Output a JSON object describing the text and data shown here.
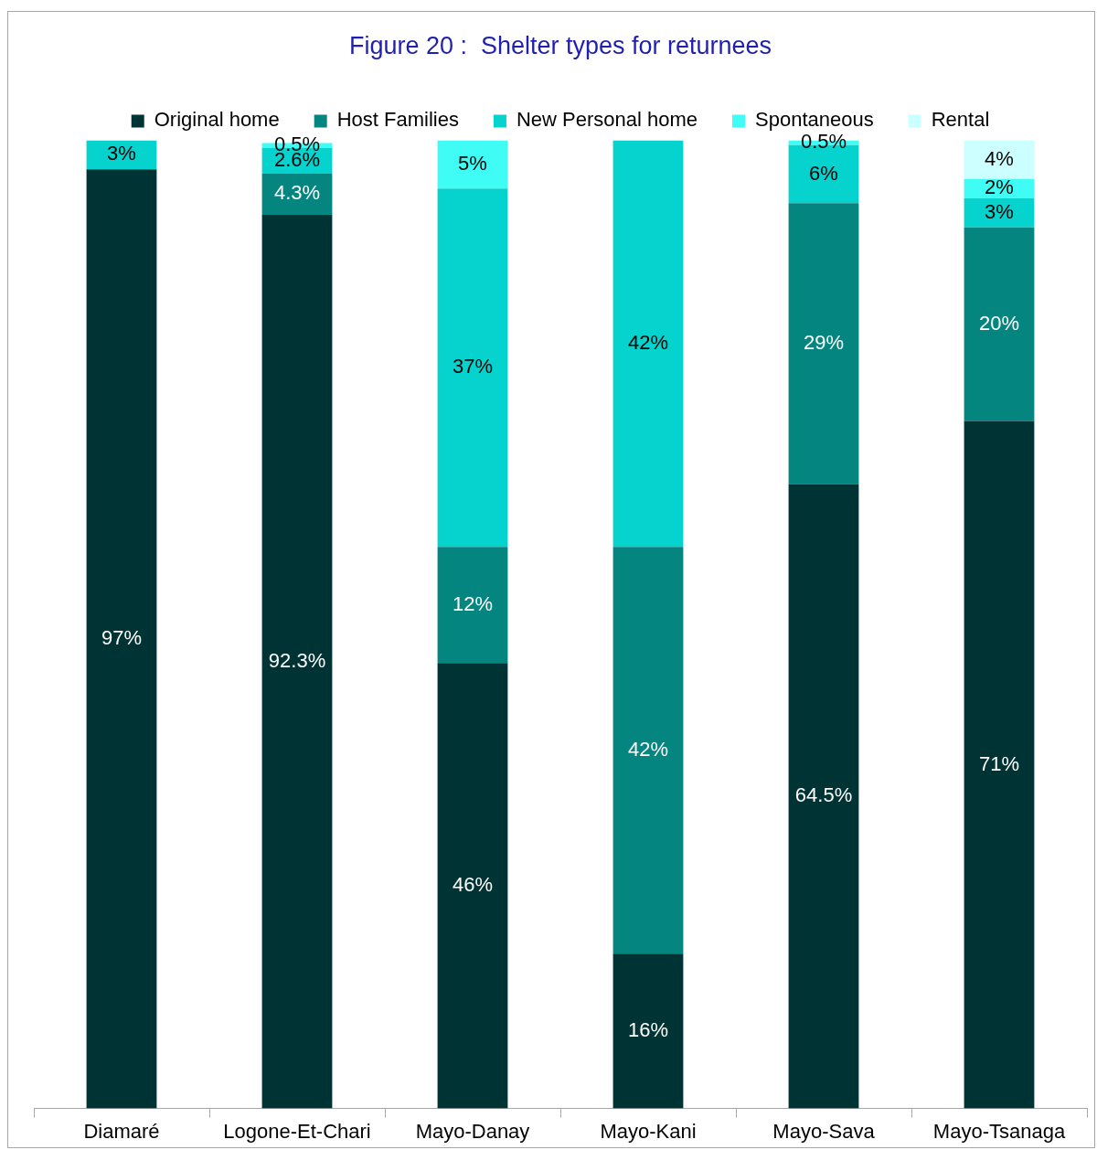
{
  "chart_data": {
    "type": "bar",
    "title": "Figure 20 :  Shelter types for returnees",
    "stacked": true,
    "legend": "top",
    "grid": false,
    "categories": [
      "Diamaré",
      "Logone-Et-Chari",
      "Mayo-Danay",
      "Mayo-Kani",
      "Mayo-Sava",
      "Mayo-Tsanaga"
    ],
    "series": [
      {
        "name": "Original home",
        "color": "#003333",
        "values": [
          97,
          92.3,
          46,
          16,
          64.5,
          71
        ],
        "value_labels": [
          "97%",
          "92.3%",
          "46%",
          "16%",
          "64.5%",
          "71%"
        ]
      },
      {
        "name": "Host Families",
        "color": "#058580",
        "values": [
          null,
          4.3,
          12,
          42,
          29,
          20
        ],
        "value_labels": [
          null,
          "4.3%",
          "12%",
          "42%",
          "29%",
          "20%"
        ]
      },
      {
        "name": "New Personal home",
        "color": "#06d3cd",
        "values": [
          3,
          2.6,
          37,
          42,
          6,
          3
        ],
        "value_labels": [
          "3%",
          "2.6%",
          "37%",
          "42%",
          "6%",
          "3%"
        ]
      },
      {
        "name": "Spontaneous",
        "color": "#3ffcf4",
        "values": [
          null,
          0.5,
          5,
          null,
          0.5,
          2
        ],
        "value_labels": [
          null,
          "0.5%",
          "5%",
          null,
          "0.5%",
          "2%"
        ]
      },
      {
        "name": "Rental",
        "color": "#ccffff",
        "values": [
          null,
          null,
          null,
          null,
          null,
          4
        ],
        "value_labels": [
          null,
          null,
          null,
          null,
          null,
          "4%"
        ]
      }
    ]
  }
}
